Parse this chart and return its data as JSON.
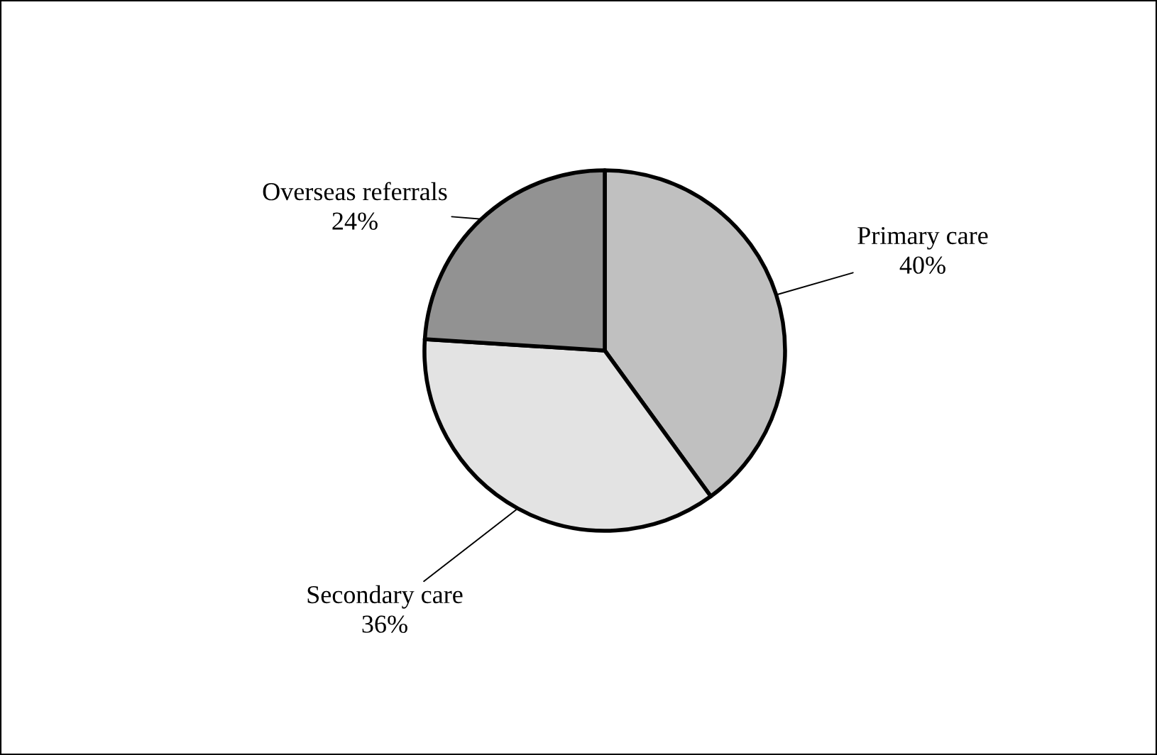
{
  "chart_data": {
    "type": "pie",
    "categories": [
      "Primary care",
      "Secondary care",
      "Overseas referrals"
    ],
    "values": [
      40,
      36,
      24
    ],
    "value_labels": [
      "40%",
      "36%",
      "24%"
    ],
    "colors": [
      "#c0c0c0",
      "#e3e3e3",
      "#929292"
    ]
  }
}
